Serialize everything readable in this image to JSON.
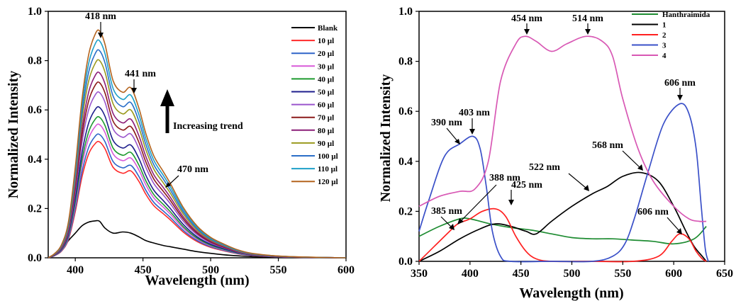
{
  "chart_data": [
    {
      "type": "line",
      "xlabel": "Wavelength (nm)",
      "ylabel": "Normalized Intensity",
      "xlim": [
        380,
        600
      ],
      "ylim": [
        0,
        1.0
      ],
      "xticks": [
        400,
        450,
        500,
        550,
        600
      ],
      "yticks": [
        0.0,
        0.2,
        0.4,
        0.6,
        0.8,
        1.0
      ],
      "ytick_labels": [
        "0.0",
        "0.2",
        "0.4",
        "0.6",
        "0.8",
        "1.0"
      ],
      "legend_position": "top-right",
      "annotations": [
        {
          "text": "418 nm",
          "x": 418,
          "y": 0.92
        },
        {
          "text": "441 nm",
          "x": 441,
          "y": 0.69
        },
        {
          "text": "470 nm",
          "x": 470,
          "y": 0.3
        },
        {
          "text": "Increasing trend"
        }
      ],
      "x": [
        380,
        385,
        390,
        395,
        400,
        405,
        410,
        415,
        418,
        422,
        428,
        435,
        441,
        447,
        452,
        458,
        465,
        470,
        480,
        490,
        500,
        510,
        520,
        530,
        545,
        560,
        580,
        600
      ],
      "series": [
        {
          "name": "Blank",
          "color": "#000000",
          "peak": 0.15,
          "values": [
            0.0,
            0.01,
            0.03,
            0.07,
            0.1,
            0.13,
            0.145,
            0.15,
            0.148,
            0.12,
            0.1,
            0.105,
            0.1,
            0.085,
            0.07,
            0.06,
            0.05,
            0.045,
            0.035,
            0.025,
            0.018,
            0.012,
            0.008,
            0.005,
            0.003,
            0.002,
            0.001,
            0.0
          ]
        },
        {
          "name": "10 µl",
          "color": "#ff2a2a",
          "peak": 0.47
        },
        {
          "name": "20 µl",
          "color": "#2e64c8",
          "peak": 0.5
        },
        {
          "name": "30 µl",
          "color": "#d85ad8",
          "peak": 0.54
        },
        {
          "name": "40 µl",
          "color": "#1e9a2e",
          "peak": 0.57
        },
        {
          "name": "50 µl",
          "color": "#1e1e8c",
          "peak": 0.61
        },
        {
          "name": "60 µl",
          "color": "#9a55cc",
          "peak": 0.67
        },
        {
          "name": "70 µl",
          "color": "#8c1a1a",
          "peak": 0.71
        },
        {
          "name": "80 µl",
          "color": "#8c1e78",
          "peak": 0.75
        },
        {
          "name": "90 µl",
          "color": "#9a9a1e",
          "peak": 0.8
        },
        {
          "name": "100 µl",
          "color": "#2a6ec8",
          "peak": 0.84
        },
        {
          "name": "110 µl",
          "color": "#1ea0c8",
          "peak": 0.88
        },
        {
          "name": "120 µl",
          "color": "#b4641e",
          "peak": 0.92
        }
      ],
      "shape": [
        0.0,
        0.02,
        0.06,
        0.16,
        0.4,
        0.7,
        0.9,
        0.99,
        1.0,
        0.94,
        0.78,
        0.73,
        0.75,
        0.66,
        0.55,
        0.45,
        0.38,
        0.33,
        0.22,
        0.14,
        0.09,
        0.06,
        0.035,
        0.02,
        0.01,
        0.005,
        0.002,
        0.0
      ]
    },
    {
      "type": "line",
      "xlabel": "Wavelength (nm)",
      "ylabel": "Normalized Intensity",
      "xlim": [
        350,
        650
      ],
      "ylim": [
        0,
        1.0
      ],
      "xticks": [
        350,
        400,
        450,
        500,
        550,
        600,
        650
      ],
      "yticks": [
        0.0,
        0.2,
        0.4,
        0.6,
        0.8,
        1.0
      ],
      "ytick_labels": [
        "0.0",
        "0.2",
        "0.4",
        "0.6",
        "0.8",
        "1.0"
      ],
      "legend_position": "top-right",
      "annotations": [
        {
          "text": "454 nm",
          "x": 454,
          "y": 0.9
        },
        {
          "text": "514 nm",
          "x": 514,
          "y": 0.9
        },
        {
          "text": "606 nm",
          "x": 606,
          "y": 0.63
        },
        {
          "text": "403 nm",
          "x": 403,
          "y": 0.5
        },
        {
          "text": "390 nm",
          "x": 390,
          "y": 0.47
        },
        {
          "text": "388 nm",
          "x": 388,
          "y": 0.15
        },
        {
          "text": "568 nm",
          "x": 568,
          "y": 0.35
        },
        {
          "text": "522 nm",
          "x": 522,
          "y": 0.28
        },
        {
          "text": "425 nm",
          "x": 425,
          "y": 0.21
        },
        {
          "text": "385 nm",
          "x": 385,
          "y": 0.18
        },
        {
          "text": "606 nm",
          "x": 606,
          "y": 0.11
        }
      ],
      "series": [
        {
          "name": "Hanthraimida",
          "color": "#1e8c32",
          "x": [
            350,
            370,
            390,
            400,
            420,
            440,
            460,
            480,
            500,
            520,
            540,
            560,
            580,
            600,
            620,
            632
          ],
          "values": [
            0.1,
            0.14,
            0.17,
            0.17,
            0.15,
            0.135,
            0.125,
            0.11,
            0.095,
            0.09,
            0.09,
            0.085,
            0.08,
            0.07,
            0.09,
            0.14
          ]
        },
        {
          "name": "1",
          "color": "#000000",
          "x": [
            350,
            370,
            390,
            410,
            425,
            440,
            455,
            465,
            480,
            500,
            520,
            535,
            550,
            568,
            585,
            600,
            612,
            620,
            628,
            632
          ],
          "values": [
            0.0,
            0.04,
            0.09,
            0.13,
            0.15,
            0.14,
            0.12,
            0.11,
            0.16,
            0.22,
            0.27,
            0.3,
            0.34,
            0.355,
            0.32,
            0.22,
            0.12,
            0.06,
            0.02,
            0.0
          ]
        },
        {
          "name": "2",
          "color": "#ff2020",
          "x": [
            350,
            365,
            380,
            388,
            400,
            412,
            425,
            435,
            445,
            455,
            465,
            480,
            520,
            560,
            585,
            598,
            606,
            615,
            622,
            628,
            632
          ],
          "values": [
            0.0,
            0.06,
            0.12,
            0.15,
            0.17,
            0.2,
            0.21,
            0.18,
            0.1,
            0.04,
            0.01,
            0.0,
            0.0,
            0.0,
            0.02,
            0.08,
            0.11,
            0.09,
            0.04,
            0.01,
            0.0
          ]
        },
        {
          "name": "3",
          "color": "#3a50c8",
          "x": [
            350,
            360,
            375,
            390,
            403,
            410,
            416,
            422,
            430,
            440,
            480,
            520,
            540,
            552,
            562,
            575,
            590,
            606,
            615,
            622,
            627,
            631,
            634
          ],
          "values": [
            0.12,
            0.25,
            0.42,
            0.47,
            0.5,
            0.45,
            0.3,
            0.12,
            0.02,
            0.0,
            0.0,
            0.0,
            0.02,
            0.07,
            0.18,
            0.36,
            0.55,
            0.63,
            0.59,
            0.45,
            0.22,
            0.05,
            0.0
          ]
        },
        {
          "name": "4",
          "color": "#d858b4",
          "x": [
            350,
            370,
            390,
            405,
            418,
            430,
            445,
            454,
            465,
            480,
            495,
            514,
            530,
            540,
            550,
            565,
            580,
            600,
            615,
            625,
            632
          ],
          "values": [
            0.22,
            0.26,
            0.28,
            0.29,
            0.4,
            0.72,
            0.87,
            0.9,
            0.88,
            0.84,
            0.87,
            0.9,
            0.88,
            0.82,
            0.65,
            0.45,
            0.32,
            0.22,
            0.17,
            0.16,
            0.16
          ]
        }
      ]
    }
  ]
}
